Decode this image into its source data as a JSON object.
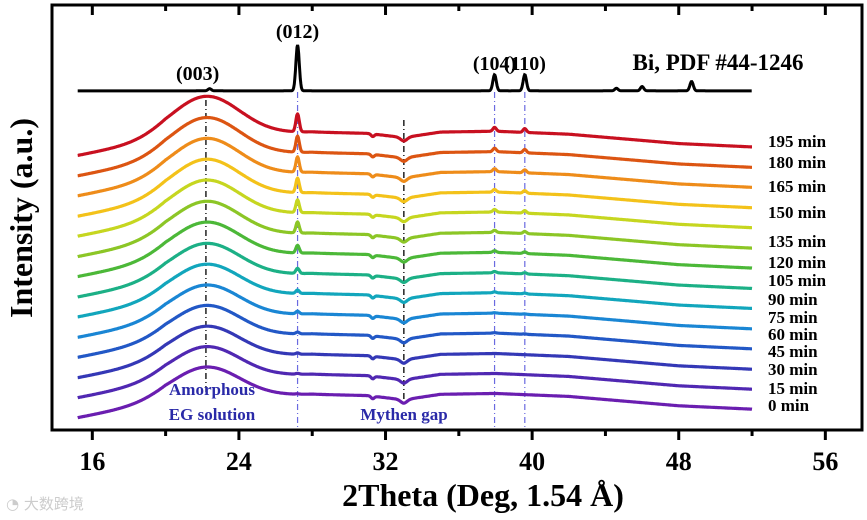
{
  "chart_data": {
    "type": "line",
    "title": "",
    "xlabel": "2Theta (Deg, 1.54 Å)",
    "ylabel": "Intensity (a.u.)",
    "xlim": [
      13.8,
      58
    ],
    "ylim": [
      0,
      100
    ],
    "xticks": [
      16,
      24,
      32,
      40,
      48,
      56
    ],
    "grid": false,
    "reference": {
      "label": "Bi, PDF #44-1246",
      "baseline": 79.8,
      "color": "#000000",
      "peaks": [
        {
          "x": 22.4,
          "h": 0.5,
          "label": "(003)"
        },
        {
          "x": 27.2,
          "h": 10.8,
          "label": "(012)"
        },
        {
          "x": 37.95,
          "h": 3.8,
          "label": "(104)"
        },
        {
          "x": 39.6,
          "h": 3.8,
          "label": "(110)"
        },
        {
          "x": 44.6,
          "h": 0.6
        },
        {
          "x": 46.0,
          "h": 1.0
        },
        {
          "x": 48.7,
          "h": 2.2
        }
      ]
    },
    "annotations": [
      {
        "text": "Amorphous",
        "color": "#2a2aa8"
      },
      {
        "text": "EG solution",
        "color": "#2a2aa8"
      },
      {
        "text": "Mythen gap",
        "color": "#2a2aa8"
      }
    ],
    "guide_lines": [
      {
        "x": 22.2,
        "style": "black-dashdot"
      },
      {
        "x": 33.0,
        "style": "black-dashdot"
      },
      {
        "x": 27.2,
        "style": "blue-dashdot"
      },
      {
        "x": 37.95,
        "style": "blue-dashdot"
      },
      {
        "x": 39.6,
        "style": "blue-dashdot"
      }
    ],
    "series": [
      {
        "name": "195 min",
        "color": "#c81020",
        "offset": 66.6,
        "hump": 9.5,
        "p012": 4.2,
        "p104": 0.9,
        "p110": 0.9
      },
      {
        "name": "180 min",
        "color": "#dc5512",
        "offset": 61.8,
        "hump": 9.3,
        "p012": 3.8,
        "p104": 0.8,
        "p110": 0.8
      },
      {
        "name": "165 min",
        "color": "#ee8c1a",
        "offset": 57.1,
        "hump": 9.1,
        "p012": 3.6,
        "p104": 0.7,
        "p110": 0.7
      },
      {
        "name": "150 min",
        "color": "#f3c21a",
        "offset": 52.3,
        "hump": 9.0,
        "p012": 3.4,
        "p104": 0.6,
        "p110": 0.6
      },
      {
        "name": "135 min",
        "color": "#c6d620",
        "offset": 47.6,
        "hump": 8.8,
        "p012": 3.0,
        "p104": 0.6,
        "p110": 0.6
      },
      {
        "name": "120 min",
        "color": "#8cc626",
        "offset": 42.8,
        "hump": 8.6,
        "p012": 2.6,
        "p104": 0.5,
        "p110": 0.5
      },
      {
        "name": "105 min",
        "color": "#4cb838",
        "offset": 38.1,
        "hump": 8.4,
        "p012": 1.8,
        "p104": 0.4,
        "p110": 0.4
      },
      {
        "name": "90 min",
        "color": "#1cb086",
        "offset": 33.3,
        "hump": 8.2,
        "p012": 1.2,
        "p104": 0.3,
        "p110": 0.3
      },
      {
        "name": "75 min",
        "color": "#12a6bc",
        "offset": 28.6,
        "hump": 8.0,
        "p012": 0.8,
        "p104": 0.2,
        "p110": 0.2
      },
      {
        "name": "60 min",
        "color": "#1a86d4",
        "offset": 23.8,
        "hump": 7.9,
        "p012": 0.6,
        "p104": 0.1,
        "p110": 0.1
      },
      {
        "name": "45 min",
        "color": "#2258c6",
        "offset": 19.1,
        "hump": 7.8,
        "p012": 0.4,
        "p104": 0.1,
        "p110": 0.1
      },
      {
        "name": "30 min",
        "color": "#3438b6",
        "offset": 14.3,
        "hump": 7.7,
        "p012": 0.3,
        "p104": 0.0,
        "p110": 0.0
      },
      {
        "name": "15 min",
        "color": "#5028b2",
        "offset": 9.6,
        "hump": 7.6,
        "p012": 0.2,
        "p104": 0.0,
        "p110": 0.0
      },
      {
        "name": "0 min",
        "color": "#6a1eb0",
        "offset": 4.9,
        "hump": 7.5,
        "p012": 0.1,
        "p104": 0.0,
        "p110": 0.0
      }
    ]
  }
}
